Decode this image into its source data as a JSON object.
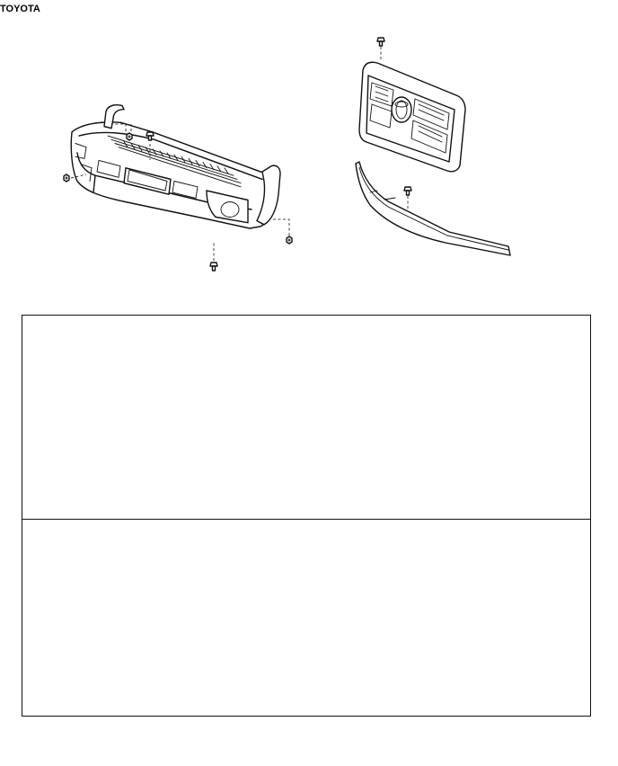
{
  "diagram": {
    "parts": [
      {
        "id": "front-bumper-cover"
      },
      {
        "id": "radiator-grille"
      },
      {
        "id": "grille-lower-molding"
      },
      {
        "id": "bumper-variant-a"
      },
      {
        "id": "bumper-variant-b"
      }
    ],
    "emblem_text": "TOYOTA"
  }
}
